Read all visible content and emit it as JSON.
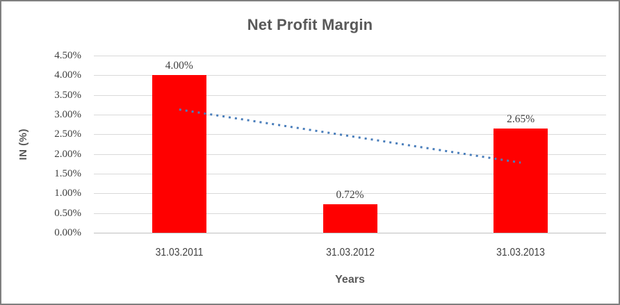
{
  "chart_data": {
    "type": "bar",
    "title": "Net Profit Margin",
    "xlabel": "Years",
    "ylabel": "IN (%)",
    "categories": [
      "31.03.2011",
      "31.03.2012",
      "31.03.2013"
    ],
    "values": [
      4.0,
      0.72,
      2.65
    ],
    "data_labels": [
      "4.00%",
      "0.72%",
      "2.65%"
    ],
    "yticks": [
      "4.50%",
      "4.00%",
      "3.50%",
      "3.00%",
      "2.50%",
      "2.00%",
      "1.50%",
      "1.00%",
      "0.50%",
      "0.00%"
    ],
    "ylim": [
      0,
      4.5
    ],
    "ytick_step": 0.5,
    "grid": true,
    "legend": "none",
    "trendline": {
      "type": "linear",
      "style": "dotted",
      "start_value": 3.13,
      "end_value": 1.78
    }
  },
  "colors": {
    "frame": "#7f7f7f",
    "title": "#595959",
    "tick": "#404040",
    "bar": "#ff0000",
    "gridline": "#d9d9d9",
    "axis_line": "#bfbfbf",
    "trendline": "#4a7ebb",
    "background": "#ffffff"
  }
}
